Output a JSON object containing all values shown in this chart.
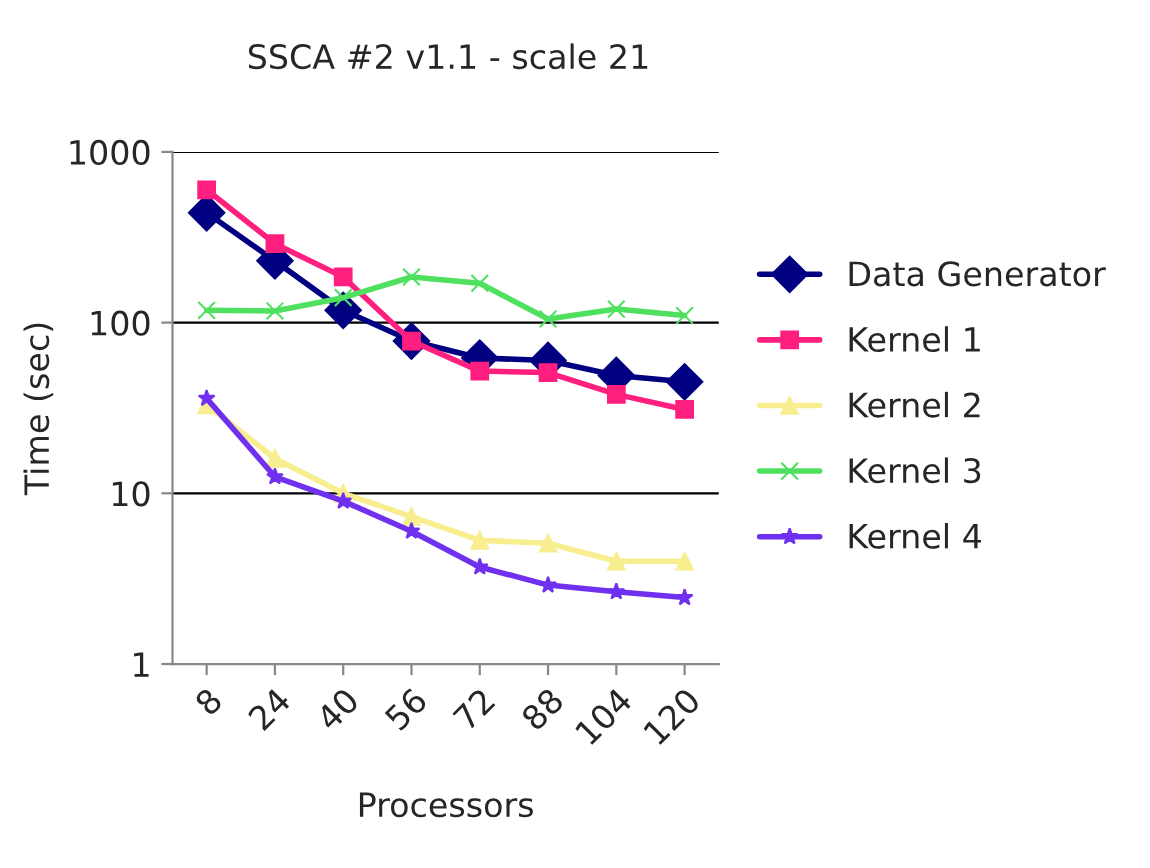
{
  "chart_data": {
    "type": "line",
    "title": "SSCA #2 v1.1 - scale 21",
    "xlabel": "Processors",
    "ylabel": "Time (sec)",
    "categories": [
      "8",
      "24",
      "40",
      "56",
      "72",
      "88",
      "104",
      "120"
    ],
    "series": [
      {
        "name": "Data Generator",
        "color": "#000080",
        "marker": "diamond",
        "values": [
          440,
          230,
          118,
          78,
          62,
          60,
          49,
          45
        ]
      },
      {
        "name": "Kernel 1",
        "color": "#ff1f7f",
        "marker": "square",
        "values": [
          600,
          290,
          185,
          78,
          52,
          51,
          38,
          31
        ]
      },
      {
        "name": "Kernel 2",
        "color": "#f8ee90",
        "marker": "triangle",
        "values": [
          33,
          16,
          10,
          7.3,
          5.3,
          5.1,
          4.0,
          4.0
        ]
      },
      {
        "name": "Kernel 3",
        "color": "#50e060",
        "marker": "cross",
        "values": [
          118,
          117,
          140,
          185,
          170,
          105,
          120,
          110
        ]
      },
      {
        "name": "Kernel 4",
        "color": "#7030f0",
        "marker": "star",
        "values": [
          36,
          12.5,
          9,
          6,
          3.7,
          2.9,
          2.65,
          2.45
        ]
      }
    ],
    "log": true,
    "ylim": [
      1,
      1000
    ],
    "yticks": [
      1,
      10,
      100,
      1000
    ],
    "grid": "y",
    "legend": "right",
    "line_style": "solid"
  }
}
